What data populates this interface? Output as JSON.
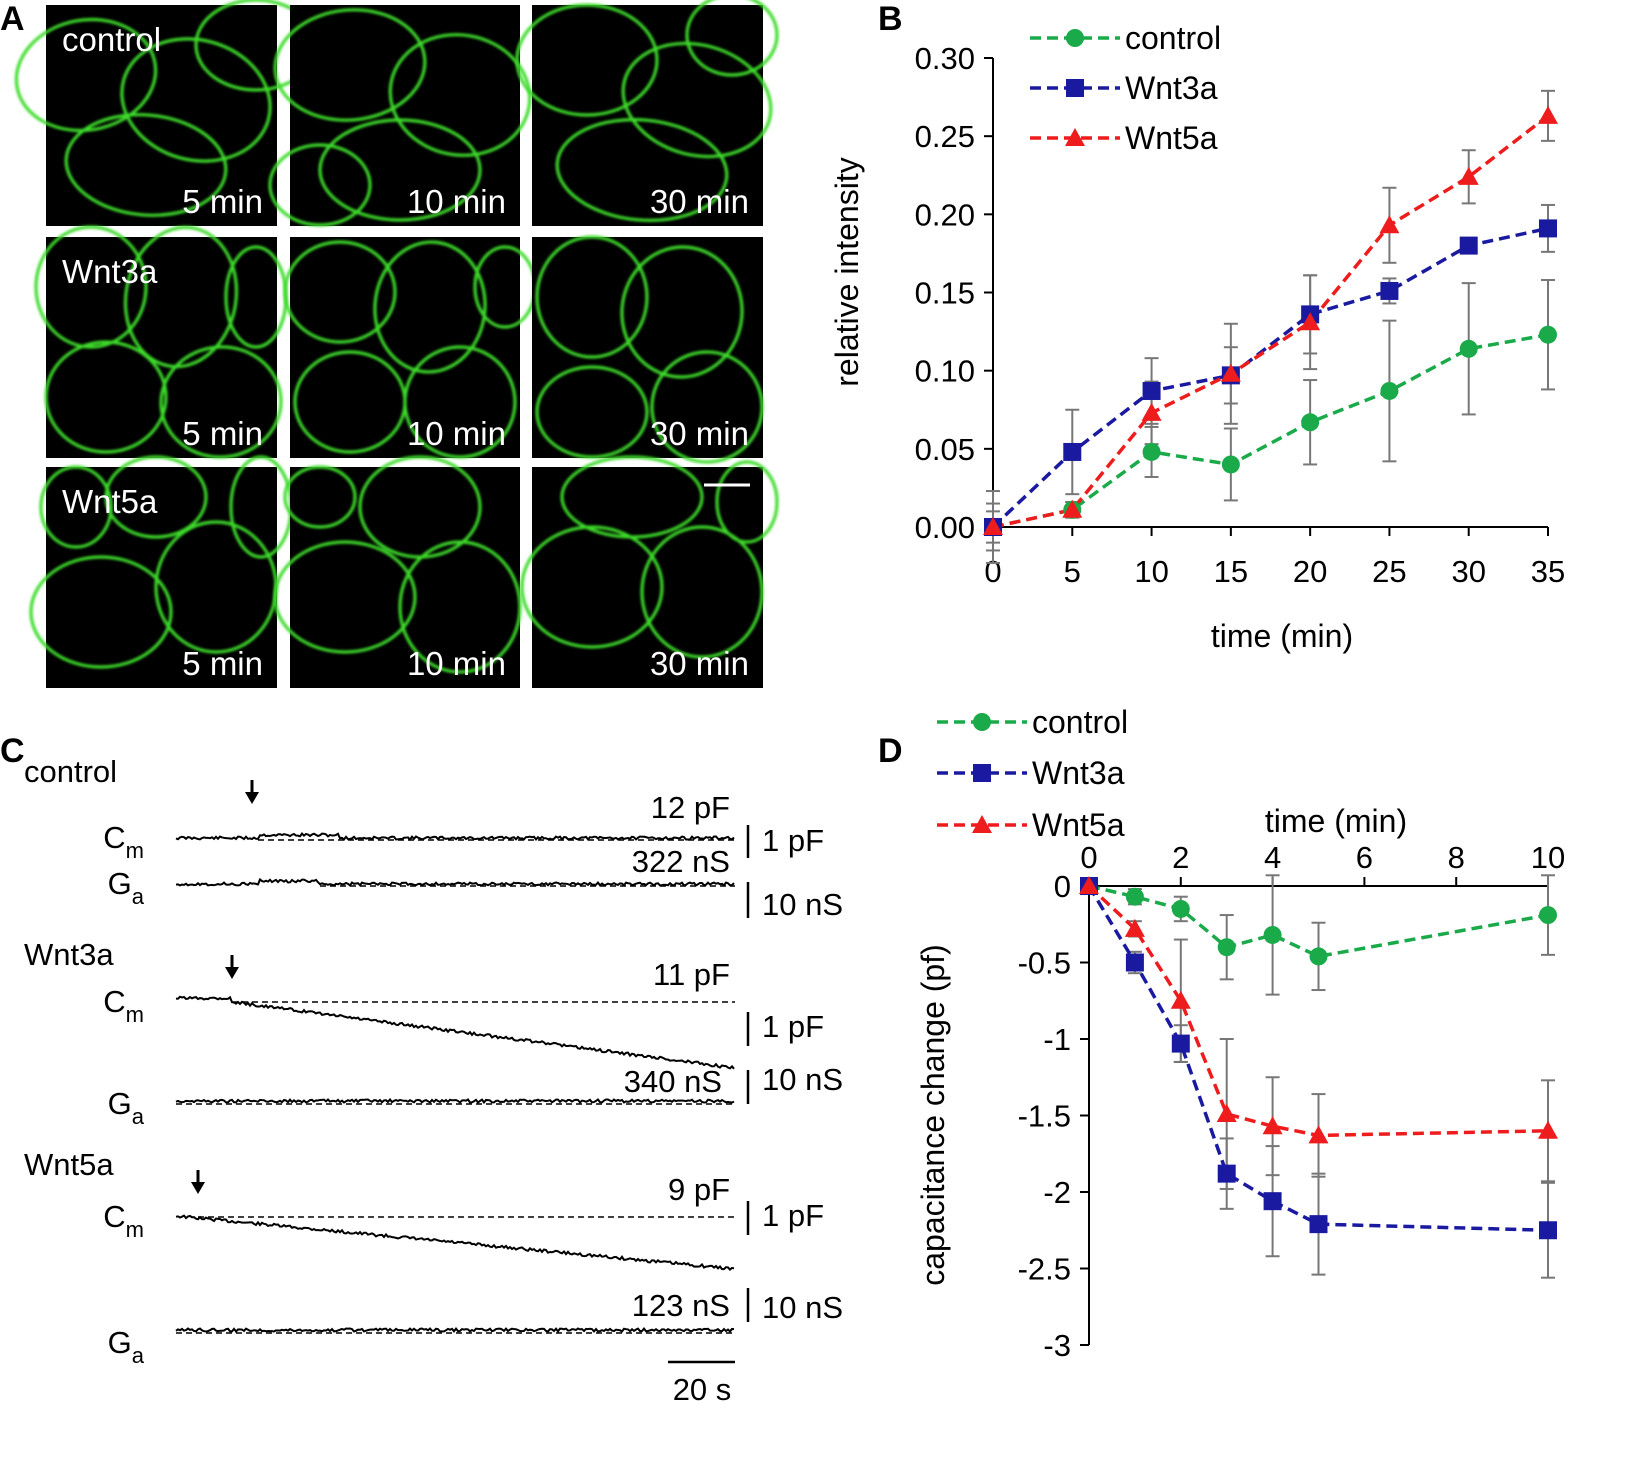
{
  "panels": {
    "a": "A",
    "b": "B",
    "c": "C",
    "d": "D"
  },
  "micrographs": {
    "rows": [
      {
        "label": "control",
        "times": [
          "5 min",
          "10 min",
          "30 min"
        ]
      },
      {
        "label": "Wnt3a",
        "times": [
          "5 min",
          "10 min",
          "30 min"
        ]
      },
      {
        "label": "Wnt5a",
        "times": [
          "5 min",
          "10 min",
          "30 min"
        ]
      }
    ],
    "stain_color": "#3ddc2b",
    "background_color": "#000000"
  },
  "colors": {
    "control": "#1aaa4a",
    "Wnt3a": "#1a1aa0",
    "Wnt5a": "#ee1c1c",
    "errorbar": "#777777"
  },
  "traces": {
    "groups": [
      {
        "name": "control",
        "cm_label": "C",
        "cm_sub": "m",
        "ga_label": "G",
        "ga_sub": "a",
        "cm_value": "12 pF",
        "ga_value": "322 nS",
        "cm_scale": "1 pF",
        "ga_scale": "10 nS"
      },
      {
        "name": "Wnt3a",
        "cm_label": "C",
        "cm_sub": "m",
        "ga_label": "G",
        "ga_sub": "a",
        "cm_value": "11 pF",
        "ga_value": "340 nS",
        "cm_scale": "1 pF",
        "ga_scale": "10 nS"
      },
      {
        "name": "Wnt5a",
        "cm_label": "C",
        "cm_sub": "m",
        "ga_label": "G",
        "ga_sub": "a",
        "cm_value": "9 pF",
        "ga_value": "123 nS",
        "cm_scale": "1 pF",
        "ga_scale": "10 nS"
      }
    ],
    "time_scale": "20 s"
  },
  "chart_data": [
    {
      "id": "B",
      "type": "line",
      "title": "",
      "xlabel": "time (min)",
      "ylabel": "relative intensity",
      "x": [
        0,
        5,
        10,
        15,
        20,
        25,
        30,
        35
      ],
      "xlim": [
        0,
        35
      ],
      "ylim": [
        0,
        0.3
      ],
      "xticks": [
        0,
        5,
        10,
        15,
        20,
        25,
        30,
        35
      ],
      "yticks": [
        "0.00",
        "0.05",
        "0.10",
        "0.15",
        "0.20",
        "0.25",
        "0.30"
      ],
      "legend_position": "top-left",
      "grid": false,
      "series": [
        {
          "name": "control",
          "marker": "circle",
          "values": [
            0.0,
            0.011,
            0.048,
            0.04,
            0.067,
            0.087,
            0.114,
            0.123
          ],
          "errors": [
            0.023,
            0.005,
            0.016,
            0.023,
            0.027,
            0.045,
            0.042,
            0.035
          ]
        },
        {
          "name": "Wnt3a",
          "marker": "square",
          "values": [
            0.0,
            0.048,
            0.087,
            0.097,
            0.136,
            0.151,
            0.18,
            0.191
          ],
          "errors": [
            0.015,
            0.027,
            0.021,
            0.018,
            0.025,
            0.008,
            0.004,
            0.015
          ]
        },
        {
          "name": "Wnt5a",
          "marker": "triangle",
          "values": [
            0.0,
            0.011,
            0.073,
            0.098,
            0.131,
            0.193,
            0.224,
            0.263
          ],
          "errors": [
            0.01,
            0.005,
            0.02,
            0.032,
            0.03,
            0.024,
            0.017,
            0.016
          ]
        }
      ]
    },
    {
      "id": "D",
      "type": "line",
      "title": "",
      "xlabel": "time (min)",
      "ylabel": "capacitance change (pf)",
      "x": [
        0,
        1,
        2,
        3,
        4,
        5,
        10
      ],
      "xlim": [
        0,
        10
      ],
      "ylim": [
        -3,
        0
      ],
      "xticks": [
        0,
        2,
        4,
        6,
        8,
        10
      ],
      "yticks": [
        "0",
        "-0.5",
        "-1",
        "-1.5",
        "-2",
        "-2.5",
        "-3"
      ],
      "x_axis_position": "top",
      "legend_position": "top-left",
      "grid": false,
      "series": [
        {
          "name": "control",
          "marker": "circle",
          "values": [
            0,
            -0.07,
            -0.15,
            -0.4,
            -0.32,
            -0.46,
            -0.19
          ],
          "errors": [
            0,
            0.05,
            0.08,
            0.21,
            0.39,
            0.22,
            0.26
          ]
        },
        {
          "name": "Wnt3a",
          "marker": "square",
          "values": [
            0,
            -0.5,
            -1.03,
            -1.88,
            -2.06,
            -2.21,
            -2.25
          ],
          "errors": [
            0,
            0.07,
            0.12,
            0.23,
            0.36,
            0.33,
            0.31
          ]
        },
        {
          "name": "Wnt5a",
          "marker": "triangle",
          "values": [
            0,
            -0.28,
            -0.75,
            -1.49,
            -1.57,
            -1.63,
            -1.6
          ],
          "errors": [
            0,
            0.05,
            0.4,
            0.49,
            0.32,
            0.27,
            0.33
          ]
        }
      ]
    }
  ]
}
